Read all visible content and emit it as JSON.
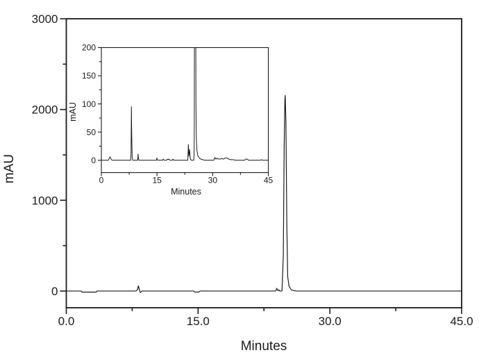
{
  "figure": {
    "background": "#ffffff",
    "line_color": "#1a1a1a",
    "frame_color": "#1a1a1a"
  },
  "chart_data": [
    {
      "id": "main",
      "type": "line",
      "title": "",
      "xlabel": "Minutes",
      "ylabel": "mAU",
      "xlim": [
        0,
        45
      ],
      "ylim": [
        -184,
        3000
      ],
      "grid": false,
      "legend": "none",
      "x_ticks": {
        "major": [
          0,
          15,
          30,
          45
        ],
        "labels": [
          "0.0",
          "15.0",
          "30.0",
          "45.0"
        ],
        "minor": [
          7.5,
          22.5,
          37.5
        ]
      },
      "y_ticks": {
        "major": [
          0,
          1000,
          2000,
          3000
        ],
        "labels": [
          "0",
          "1000",
          "2000",
          "3000"
        ],
        "minor": [
          500,
          1500,
          2500
        ]
      },
      "line_color": "#1a1a1a",
      "series": [
        {
          "name": "chromatogram-main",
          "points": [
            [
              0,
              0
            ],
            [
              1.7,
              0
            ],
            [
              1.8,
              -12
            ],
            [
              3.4,
              -12
            ],
            [
              3.5,
              0
            ],
            [
              7.95,
              0
            ],
            [
              8.1,
              15
            ],
            [
              8.2,
              58
            ],
            [
              8.3,
              22
            ],
            [
              8.4,
              -14
            ],
            [
              8.5,
              -12
            ],
            [
              8.6,
              0
            ],
            [
              14.5,
              0
            ],
            [
              14.6,
              -11
            ],
            [
              15.1,
              -11
            ],
            [
              15.2,
              0
            ],
            [
              23.85,
              0
            ],
            [
              23.95,
              30
            ],
            [
              24.1,
              4
            ],
            [
              24.2,
              12
            ],
            [
              24.3,
              0
            ],
            [
              24.55,
              0
            ],
            [
              24.7,
              380
            ],
            [
              24.8,
              1600
            ],
            [
              24.88,
              2110
            ],
            [
              24.92,
              2155
            ],
            [
              25.0,
              1850
            ],
            [
              25.1,
              750
            ],
            [
              25.2,
              160
            ],
            [
              25.35,
              55
            ],
            [
              25.6,
              14
            ],
            [
              25.9,
              4
            ],
            [
              26.2,
              0
            ],
            [
              45,
              0
            ]
          ]
        }
      ]
    },
    {
      "id": "inset",
      "type": "line",
      "title": "",
      "xlabel": "Minutes",
      "ylabel": "mAU",
      "xlim": [
        0,
        45
      ],
      "ylim": [
        -22,
        200
      ],
      "grid": false,
      "legend": "none",
      "clip_note": "large peak at ~25 min exceeds 200 mAU and is clipped at top frame",
      "x_ticks": {
        "major": [
          0,
          15,
          30,
          45
        ],
        "labels": [
          "0",
          "15",
          "30",
          "45"
        ],
        "minor": [
          7.5,
          22.5,
          37.5
        ]
      },
      "y_ticks": {
        "major": [
          0,
          50,
          100,
          150,
          200
        ],
        "labels": [
          "0",
          "50",
          "100",
          "150",
          "200"
        ],
        "minor": [
          25,
          75,
          125,
          175
        ]
      },
      "line_color": "#1a1a1a",
      "series": [
        {
          "name": "chromatogram-inset",
          "points": [
            [
              0,
              0
            ],
            [
              1.9,
              0
            ],
            [
              2.1,
              3
            ],
            [
              2.3,
              6
            ],
            [
              2.5,
              4
            ],
            [
              2.7,
              1
            ],
            [
              3.0,
              0
            ],
            [
              7.9,
              0
            ],
            [
              8.0,
              12
            ],
            [
              8.1,
              95
            ],
            [
              8.2,
              40
            ],
            [
              8.3,
              6
            ],
            [
              8.45,
              0
            ],
            [
              9.8,
              0
            ],
            [
              9.9,
              11
            ],
            [
              10.0,
              4
            ],
            [
              10.15,
              0
            ],
            [
              14.85,
              0
            ],
            [
              14.95,
              4
            ],
            [
              15.1,
              1
            ],
            [
              15.3,
              0
            ],
            [
              16.5,
              0
            ],
            [
              16.7,
              2
            ],
            [
              16.9,
              0
            ],
            [
              17.6,
              0
            ],
            [
              17.8,
              2
            ],
            [
              18.0,
              1
            ],
            [
              18.2,
              2
            ],
            [
              18.5,
              0
            ],
            [
              19.1,
              0
            ],
            [
              19.3,
              2
            ],
            [
              19.5,
              0
            ],
            [
              23.3,
              0
            ],
            [
              23.45,
              28
            ],
            [
              23.6,
              7
            ],
            [
              23.8,
              19
            ],
            [
              23.95,
              4
            ],
            [
              24.1,
              1
            ],
            [
              24.25,
              0
            ],
            [
              24.9,
              0
            ],
            [
              25.0,
              12
            ],
            [
              25.05,
              60
            ],
            [
              25.12,
              330
            ],
            [
              25.42,
              330
            ],
            [
              25.5,
              100
            ],
            [
              25.6,
              40
            ],
            [
              25.75,
              18
            ],
            [
              26.0,
              8
            ],
            [
              26.5,
              3
            ],
            [
              27.3,
              1
            ],
            [
              27.9,
              0
            ],
            [
              30.3,
              0
            ],
            [
              30.6,
              5
            ],
            [
              30.9,
              2
            ],
            [
              31.2,
              4
            ],
            [
              31.5,
              2
            ],
            [
              32.0,
              2
            ],
            [
              32.4,
              3
            ],
            [
              32.9,
              2
            ],
            [
              33.4,
              4
            ],
            [
              33.9,
              4
            ],
            [
              34.3,
              2
            ],
            [
              34.9,
              1
            ],
            [
              35.5,
              1
            ],
            [
              36.2,
              0
            ],
            [
              38.6,
              0
            ],
            [
              38.9,
              2
            ],
            [
              39.3,
              2
            ],
            [
              39.7,
              0
            ],
            [
              42.8,
              0
            ],
            [
              43.1,
              1
            ],
            [
              43.5,
              0
            ],
            [
              45,
              0
            ]
          ]
        }
      ]
    }
  ]
}
